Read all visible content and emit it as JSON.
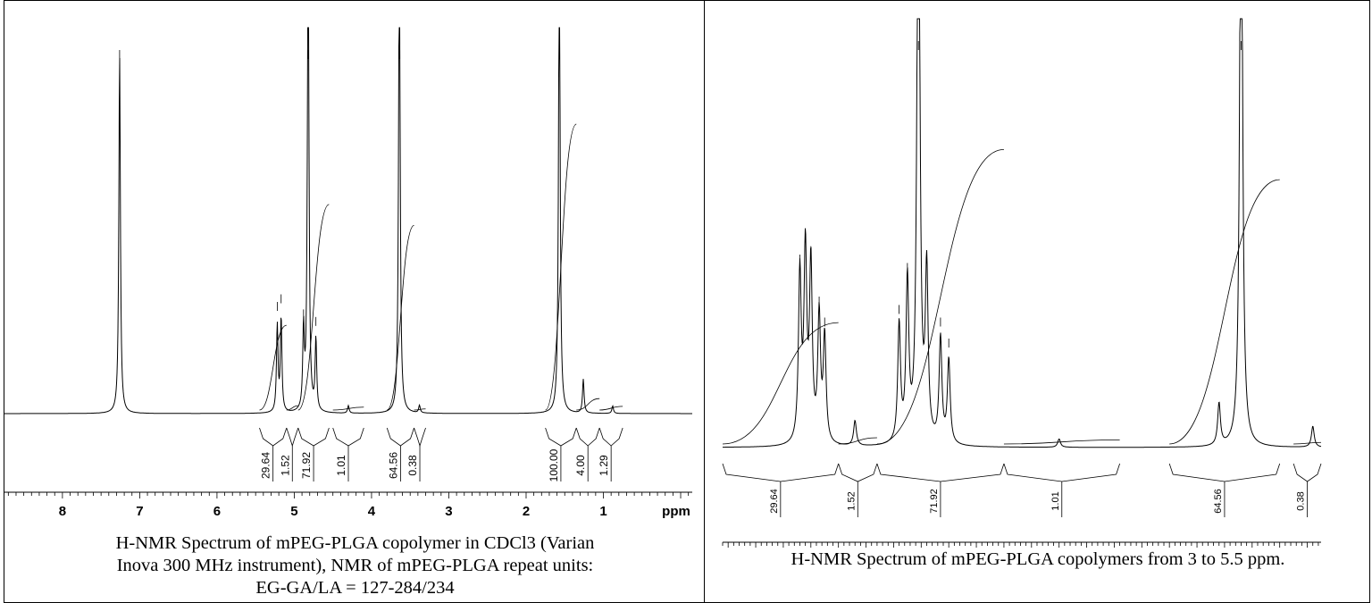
{
  "chart_data": [
    {
      "type": "line",
      "caption": "H-NMR Spectrum of mPEG-PLGA copolymer in CDCl3 (Varian Inova 300 MHz instrument), NMR of mPEG-PLGA repeat units: EG-GA/LA = 127-284/234",
      "x_unit": "ppm",
      "xlim": [
        8.75,
        -0.15
      ],
      "x_ticks": [
        "8",
        "7",
        "6",
        "5",
        "4",
        "3",
        "2",
        "1"
      ],
      "peaks": [
        {
          "ppm": 7.26,
          "intensity": 0.95
        },
        {
          "ppm": 5.22,
          "intensity": 0.23
        },
        {
          "ppm": 5.17,
          "intensity": 0.25
        },
        {
          "ppm": 4.88,
          "intensity": 0.21
        },
        {
          "ppm": 4.82,
          "intensity": 1.3
        },
        {
          "ppm": 4.72,
          "intensity": 0.19
        },
        {
          "ppm": 4.3,
          "intensity": 0.02
        },
        {
          "ppm": 3.64,
          "intensity": 1.3
        },
        {
          "ppm": 3.38,
          "intensity": 0.02
        },
        {
          "ppm": 1.57,
          "intensity": 1.3
        },
        {
          "ppm": 1.26,
          "intensity": 0.09
        },
        {
          "ppm": 0.88,
          "intensity": 0.02
        }
      ],
      "integrals": [
        {
          "from": 5.45,
          "to": 5.1,
          "label": "29.64"
        },
        {
          "from": 5.1,
          "to": 4.95,
          "label": "1.52"
        },
        {
          "from": 4.95,
          "to": 4.55,
          "label": "71.92"
        },
        {
          "from": 4.5,
          "to": 4.1,
          "label": "1.01"
        },
        {
          "from": 3.8,
          "to": 3.45,
          "label": "64.56"
        },
        {
          "from": 3.45,
          "to": 3.3,
          "label": "0.38"
        },
        {
          "from": 1.75,
          "to": 1.35,
          "label": "100.00"
        },
        {
          "from": 1.35,
          "to": 1.05,
          "label": "4.00"
        },
        {
          "from": 1.05,
          "to": 0.75,
          "label": "1.29"
        }
      ]
    },
    {
      "type": "line",
      "caption": "H-NMR Spectrum of mPEG-PLGA copolymers from 3 to 5.5 ppm.",
      "x_unit": "ppm",
      "xlim": [
        5.52,
        3.35
      ],
      "x_ticks": [
        "5.5",
        "5.4",
        "5.3",
        "5.2",
        "5.1",
        "5.0",
        "4.9",
        "4.8",
        "4.7",
        "4.6",
        "4.5",
        "4.4",
        "4.3",
        "4.2",
        "4.1",
        "4.0",
        "3.9",
        "3.8",
        "3.7",
        "3.6",
        "3.5"
      ],
      "peaks": [
        {
          "ppm": 5.24,
          "intensity": 0.4
        },
        {
          "ppm": 5.22,
          "intensity": 0.45
        },
        {
          "ppm": 5.2,
          "intensity": 0.42
        },
        {
          "ppm": 5.17,
          "intensity": 0.3
        },
        {
          "ppm": 5.15,
          "intensity": 0.25
        },
        {
          "ppm": 5.04,
          "intensity": 0.06
        },
        {
          "ppm": 4.88,
          "intensity": 0.28
        },
        {
          "ppm": 4.85,
          "intensity": 0.38
        },
        {
          "ppm": 4.81,
          "intensity": 1.6
        },
        {
          "ppm": 4.78,
          "intensity": 0.4
        },
        {
          "ppm": 4.73,
          "intensity": 0.25
        },
        {
          "ppm": 4.7,
          "intensity": 0.2
        },
        {
          "ppm": 4.3,
          "intensity": 0.02
        },
        {
          "ppm": 3.72,
          "intensity": 0.1
        },
        {
          "ppm": 3.64,
          "intensity": 1.6
        },
        {
          "ppm": 3.38,
          "intensity": 0.05
        }
      ],
      "integrals": [
        {
          "from": 5.52,
          "to": 5.1,
          "label": "29.64"
        },
        {
          "from": 5.1,
          "to": 4.96,
          "label": "1.52"
        },
        {
          "from": 4.96,
          "to": 4.5,
          "label": "71.92"
        },
        {
          "from": 4.5,
          "to": 4.08,
          "label": "1.01"
        },
        {
          "from": 3.9,
          "to": 3.5,
          "label": "64.56"
        },
        {
          "from": 3.45,
          "to": 3.35,
          "label": "0.38"
        }
      ]
    }
  ],
  "unit_label": "ppm",
  "captions": {
    "left_lines": [
      "H-NMR Spectrum of mPEG-PLGA copolymer in CDCl3 (Varian",
      "Inova 300 MHz instrument), NMR of mPEG-PLGA repeat units:",
      "EG-GA/LA = 127-284/234"
    ],
    "right": "H-NMR Spectrum of mPEG-PLGA copolymers from 3 to 5.5 ppm."
  }
}
